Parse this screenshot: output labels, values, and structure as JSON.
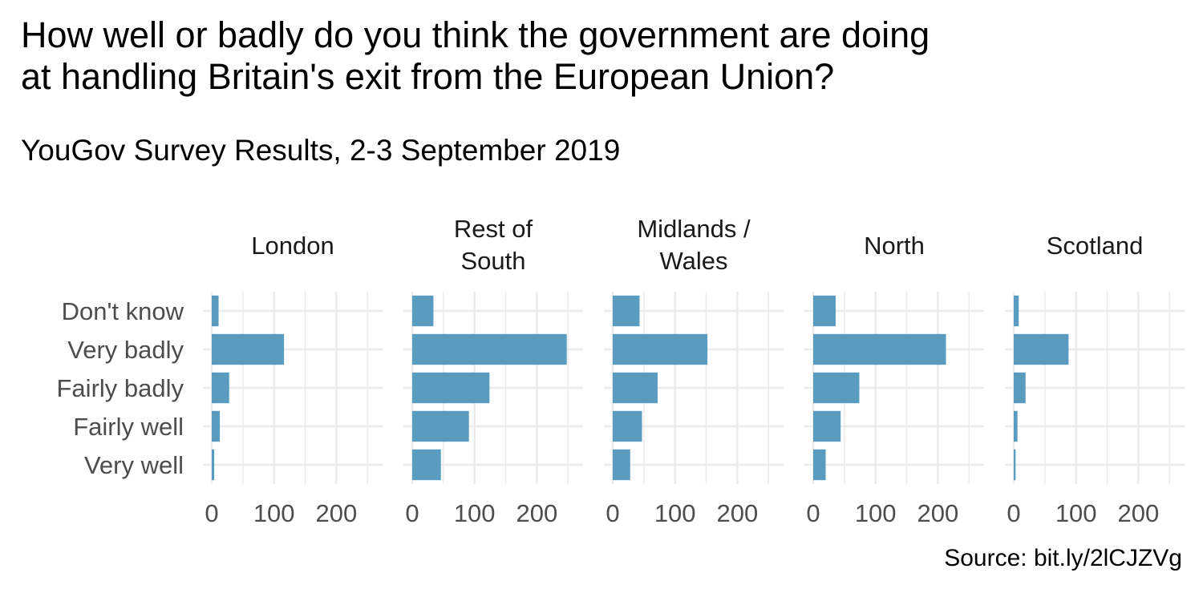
{
  "title": "How well or badly do you think the government are doing\nat handling Britain's exit from the European Union?",
  "subtitle": "YouGov Survey Results, 2-3 September 2019",
  "caption": "Source: bit.ly/2lCJZVg",
  "chart_data": {
    "type": "bar",
    "orientation": "horizontal",
    "categories": [
      "Very well",
      "Fairly well",
      "Fairly badly",
      "Very badly",
      "Don't know"
    ],
    "facets": [
      {
        "name": "London",
        "values": [
          4,
          13,
          28,
          116,
          11
        ]
      },
      {
        "name": "Rest of\nSouth",
        "values": [
          46,
          91,
          124,
          248,
          34
        ]
      },
      {
        "name": "Midlands /\nWales",
        "values": [
          28,
          47,
          72,
          152,
          43
        ]
      },
      {
        "name": "North",
        "values": [
          20,
          44,
          74,
          213,
          36
        ]
      },
      {
        "name": "Scotland",
        "values": [
          3,
          6,
          19,
          88,
          8
        ]
      }
    ],
    "xlim": [
      0,
      260
    ],
    "xticks": [
      0,
      100,
      200
    ],
    "color": "#589CC0",
    "grid": true
  }
}
